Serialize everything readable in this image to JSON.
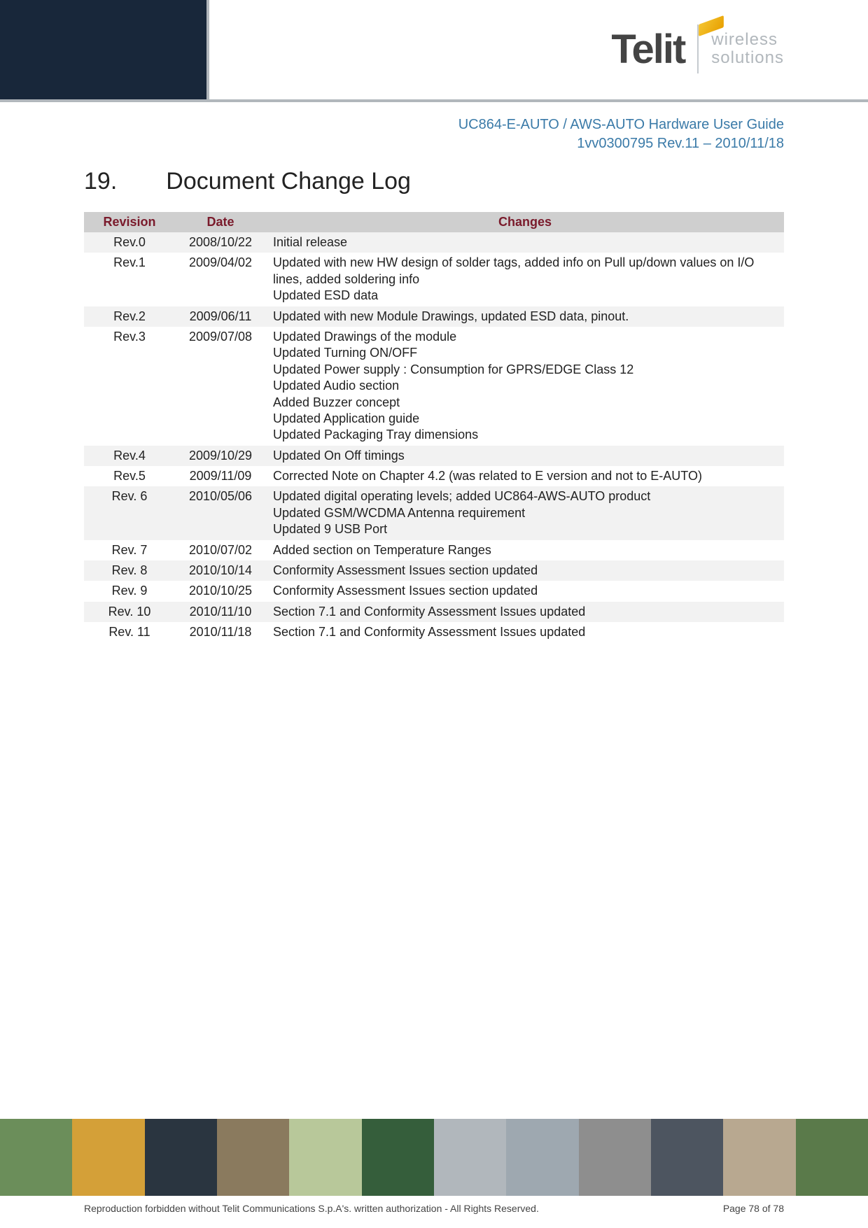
{
  "logo": {
    "brand": "Telit",
    "tagline_line1": "wireless",
    "tagline_line2": "solutions"
  },
  "doc_meta": {
    "title": "UC864-E-AUTO / AWS-AUTO Hardware User Guide",
    "ref": "1vv0300795 Rev.11 – 2010/11/18"
  },
  "section": {
    "number": "19.",
    "title": "Document Change Log"
  },
  "table": {
    "headers": {
      "revision": "Revision",
      "date": "Date",
      "changes": "Changes"
    },
    "header_bg": "#cfcfcf",
    "header_color": "#7a1a2b",
    "row_odd_bg": "#f2f2f2",
    "row_even_bg": "#ffffff",
    "rows": [
      {
        "rev": "Rev.0",
        "date": "2008/10/22",
        "changes": [
          "Initial release"
        ]
      },
      {
        "rev": "Rev.1",
        "date": "2009/04/02",
        "changes": [
          "Updated with new HW design of solder tags, added info on Pull up/down values on I/O lines, added soldering info",
          "Updated ESD data"
        ]
      },
      {
        "rev": "Rev.2",
        "date": "2009/06/11",
        "changes": [
          "Updated with new Module Drawings, updated ESD data, pinout."
        ]
      },
      {
        "rev": "Rev.3",
        "date": "2009/07/08",
        "changes": [
          "Updated Drawings of the module",
          "Updated Turning ON/OFF",
          "Updated Power supply : Consumption for GPRS/EDGE Class 12",
          "Updated Audio section",
          "Added Buzzer concept",
          "Updated Application guide",
          "Updated Packaging Tray dimensions"
        ]
      },
      {
        "rev": "Rev.4",
        "date": "2009/10/29",
        "changes": [
          "Updated On Off timings"
        ]
      },
      {
        "rev": "Rev.5",
        "date": "2009/11/09",
        "changes": [
          "Corrected Note on Chapter 4.2 (was related to E version and not to E-AUTO)"
        ]
      },
      {
        "rev": "Rev. 6",
        "date": "2010/05/06",
        "changes": [
          "Updated digital operating levels; added UC864-AWS-AUTO product",
          "Updated GSM/WCDMA Antenna requirement",
          "Updated 9 USB Port"
        ]
      },
      {
        "rev": "Rev. 7",
        "date": "2010/07/02",
        "changes": [
          "Added section on Temperature Ranges"
        ]
      },
      {
        "rev": "Rev. 8",
        "date": "2010/10/14",
        "changes": [
          "Conformity Assessment Issues section updated"
        ]
      },
      {
        "rev": "Rev. 9",
        "date": "2010/10/25",
        "changes": [
          "Conformity Assessment Issues section updated"
        ]
      },
      {
        "rev": "Rev. 10",
        "date": "2010/11/10",
        "changes": [
          "Section 7.1 and Conformity Assessment Issues updated"
        ]
      },
      {
        "rev": "Rev. 11",
        "date": "2010/11/18",
        "changes": [
          "Section 7.1 and Conformity Assessment Issues updated"
        ]
      }
    ]
  },
  "footer": {
    "copyright": "Reproduction forbidden without Telit Communications S.p.A's. written authorization - All Rights Reserved.",
    "page": "Page 78 of 78",
    "strip_colors": [
      "#6b8e5a",
      "#d4a038",
      "#2a3540",
      "#8a7a5e",
      "#b8c89a",
      "#355e3b",
      "#b1b7bc",
      "#9ea8b0",
      "#8e8e8e",
      "#4d5560",
      "#b8a890",
      "#5a7a4a"
    ]
  }
}
